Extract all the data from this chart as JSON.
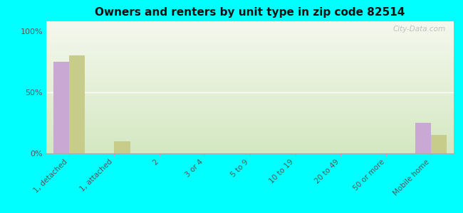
{
  "title": "Owners and renters by unit type in zip code 82514",
  "categories": [
    "1, detached",
    "1, attached",
    "2",
    "3 or 4",
    "5 to 9",
    "10 to 19",
    "20 to 49",
    "50 or more",
    "Mobile home"
  ],
  "owner_values": [
    75,
    0,
    0,
    0,
    0,
    0,
    0,
    0,
    25
  ],
  "renter_values": [
    80,
    10,
    0,
    0,
    0,
    0,
    0,
    0,
    15
  ],
  "owner_color": "#c9a8d4",
  "renter_color": "#c8cc8a",
  "background_color": "#00ffff",
  "yticks": [
    0,
    50,
    100
  ],
  "ylim": [
    0,
    108
  ],
  "watermark": "City-Data.com",
  "bar_width": 0.35
}
